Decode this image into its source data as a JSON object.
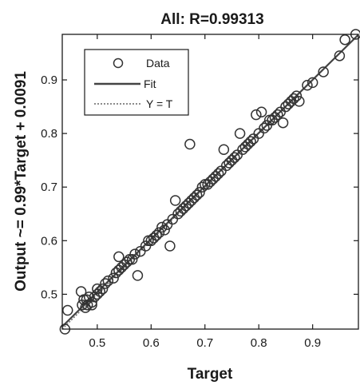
{
  "chart_data": {
    "type": "scatter",
    "title": "All: R=0.99313",
    "xlabel": "Target",
    "ylabel": "Output ~= 0.99*Target + 0.0091",
    "xlim": [
      0.435,
      0.985
    ],
    "ylim": [
      0.435,
      0.985
    ],
    "xticks": [
      0.5,
      0.6,
      0.7,
      0.8,
      0.9
    ],
    "yticks": [
      0.5,
      0.6,
      0.7,
      0.8,
      0.9
    ],
    "xtick_labels": [
      "0.5",
      "0.6",
      "0.7",
      "0.8",
      "0.9"
    ],
    "ytick_labels": [
      "0.5",
      "0.6",
      "0.7",
      "0.8",
      "0.9"
    ],
    "grid": false,
    "legend_position": "top-left",
    "legend": [
      {
        "label": "Data",
        "style": "circle"
      },
      {
        "label": "Fit",
        "style": "solid-line"
      },
      {
        "label": "Y = T",
        "style": "dotted-line"
      }
    ],
    "fit": {
      "slope": 0.99,
      "intercept": 0.0091
    },
    "colors": {
      "marker": "#333333",
      "fit": "#444444",
      "identity": "#666666",
      "axes": "#1a1a1a"
    },
    "series": [
      {
        "name": "Data",
        "x": [
          0.44,
          0.445,
          0.47,
          0.472,
          0.475,
          0.478,
          0.48,
          0.482,
          0.485,
          0.49,
          0.49,
          0.495,
          0.5,
          0.5,
          0.505,
          0.51,
          0.515,
          0.52,
          0.53,
          0.535,
          0.54,
          0.54,
          0.545,
          0.55,
          0.555,
          0.56,
          0.565,
          0.57,
          0.575,
          0.58,
          0.59,
          0.595,
          0.6,
          0.605,
          0.61,
          0.615,
          0.62,
          0.625,
          0.63,
          0.635,
          0.64,
          0.645,
          0.65,
          0.655,
          0.66,
          0.665,
          0.67,
          0.672,
          0.675,
          0.68,
          0.685,
          0.69,
          0.695,
          0.7,
          0.705,
          0.71,
          0.715,
          0.72,
          0.725,
          0.73,
          0.735,
          0.74,
          0.745,
          0.75,
          0.755,
          0.76,
          0.765,
          0.77,
          0.775,
          0.78,
          0.785,
          0.79,
          0.795,
          0.8,
          0.805,
          0.81,
          0.815,
          0.82,
          0.825,
          0.83,
          0.835,
          0.84,
          0.845,
          0.85,
          0.855,
          0.86,
          0.865,
          0.87,
          0.875,
          0.89,
          0.9,
          0.92,
          0.95,
          0.96,
          0.98
        ],
        "y": [
          0.435,
          0.47,
          0.505,
          0.48,
          0.49,
          0.475,
          0.49,
          0.48,
          0.495,
          0.485,
          0.48,
          0.495,
          0.5,
          0.51,
          0.505,
          0.51,
          0.52,
          0.525,
          0.53,
          0.54,
          0.545,
          0.57,
          0.55,
          0.555,
          0.56,
          0.565,
          0.565,
          0.575,
          0.535,
          0.58,
          0.59,
          0.6,
          0.6,
          0.605,
          0.61,
          0.615,
          0.625,
          0.62,
          0.63,
          0.59,
          0.64,
          0.675,
          0.65,
          0.655,
          0.66,
          0.665,
          0.67,
          0.78,
          0.675,
          0.68,
          0.685,
          0.69,
          0.7,
          0.705,
          0.705,
          0.71,
          0.715,
          0.72,
          0.725,
          0.73,
          0.77,
          0.74,
          0.745,
          0.75,
          0.755,
          0.76,
          0.8,
          0.77,
          0.775,
          0.78,
          0.785,
          0.79,
          0.835,
          0.8,
          0.84,
          0.81,
          0.815,
          0.825,
          0.825,
          0.83,
          0.835,
          0.84,
          0.82,
          0.85,
          0.855,
          0.86,
          0.865,
          0.87,
          0.86,
          0.89,
          0.895,
          0.915,
          0.945,
          0.975,
          0.985
        ]
      }
    ]
  }
}
